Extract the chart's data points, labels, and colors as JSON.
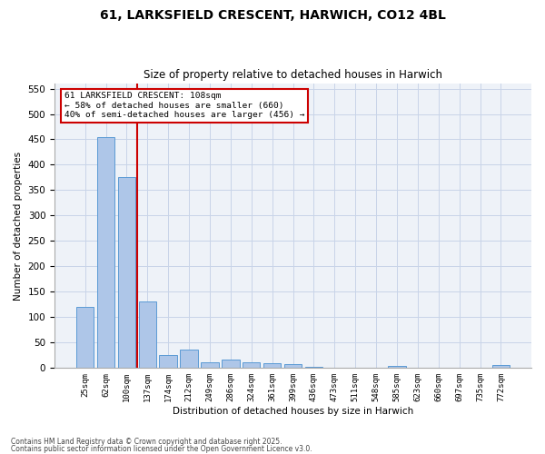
{
  "title1": "61, LARKSFIELD CRESCENT, HARWICH, CO12 4BL",
  "title2": "Size of property relative to detached houses in Harwich",
  "xlabel": "Distribution of detached houses by size in Harwich",
  "ylabel": "Number of detached properties",
  "footer1": "Contains HM Land Registry data © Crown copyright and database right 2025.",
  "footer2": "Contains public sector information licensed under the Open Government Licence v3.0.",
  "annotation_title": "61 LARKSFIELD CRESCENT: 108sqm",
  "annotation_line1": "← 58% of detached houses are smaller (660)",
  "annotation_line2": "40% of semi-detached houses are larger (456) →",
  "bar_labels": [
    "25sqm",
    "62sqm",
    "100sqm",
    "137sqm",
    "174sqm",
    "212sqm",
    "249sqm",
    "286sqm",
    "324sqm",
    "361sqm",
    "399sqm",
    "436sqm",
    "473sqm",
    "511sqm",
    "548sqm",
    "585sqm",
    "623sqm",
    "660sqm",
    "697sqm",
    "735sqm",
    "772sqm"
  ],
  "bar_heights": [
    120,
    455,
    375,
    130,
    25,
    35,
    10,
    15,
    10,
    8,
    6,
    2,
    0,
    0,
    0,
    3,
    0,
    0,
    0,
    0,
    5
  ],
  "bar_color": "#aec6e8",
  "bar_edge_color": "#5b9bd5",
  "red_line_x": 2.5,
  "red_line_color": "#cc0000",
  "annotation_box_color": "#cc0000",
  "grid_color": "#c8d4e8",
  "background_color": "#eef2f8",
  "ylim": [
    0,
    560
  ],
  "yticks": [
    0,
    50,
    100,
    150,
    200,
    250,
    300,
    350,
    400,
    450,
    500,
    550
  ]
}
